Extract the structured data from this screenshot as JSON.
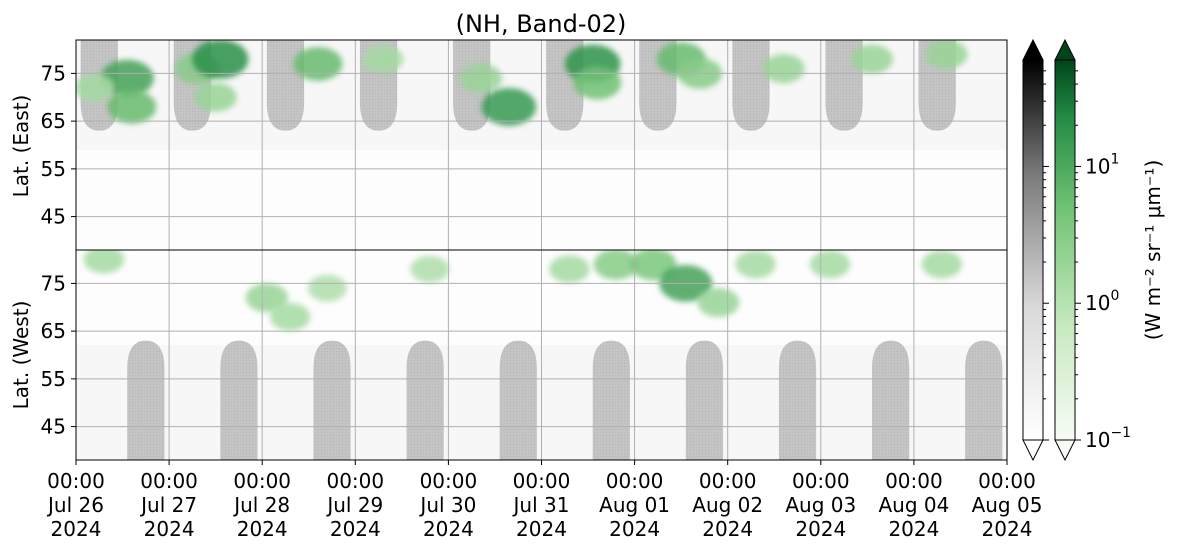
{
  "chart_data": {
    "type": "heatmap",
    "title": "(NH, Band-02)",
    "ylabel_top": "Lat. (East)",
    "ylabel_bottom": "Lat. (West)",
    "y_ticks_top": [
      "45",
      "55",
      "65",
      "75"
    ],
    "y_ticks_bottom": [
      "75",
      "65",
      "55",
      "45"
    ],
    "y_tick_values_top": [
      45,
      55,
      65,
      75
    ],
    "y_tick_values_bottom": [
      75,
      65,
      55,
      45
    ],
    "ylim_top": [
      38,
      82
    ],
    "ylim_bottom": [
      82,
      38
    ],
    "x_ticks": [
      {
        "time": "00:00",
        "date": "Jul 26",
        "year": "2024"
      },
      {
        "time": "00:00",
        "date": "Jul 27",
        "year": "2024"
      },
      {
        "time": "00:00",
        "date": "Jul 28",
        "year": "2024"
      },
      {
        "time": "00:00",
        "date": "Jul 29",
        "year": "2024"
      },
      {
        "time": "00:00",
        "date": "Jul 30",
        "year": "2024"
      },
      {
        "time": "00:00",
        "date": "Jul 31",
        "year": "2024"
      },
      {
        "time": "00:00",
        "date": "Aug 01",
        "year": "2024"
      },
      {
        "time": "00:00",
        "date": "Aug 02",
        "year": "2024"
      },
      {
        "time": "00:00",
        "date": "Aug 03",
        "year": "2024"
      },
      {
        "time": "00:00",
        "date": "Aug 04",
        "year": "2024"
      },
      {
        "time": "00:00",
        "date": "Aug 05",
        "year": "2024"
      }
    ],
    "xlim": [
      "2024-07-26 00:00",
      "2024-08-05 00:00"
    ],
    "grid": true,
    "colorbar": {
      "label": "(W m⁻² sr⁻¹ μm⁻¹)",
      "scale": "log",
      "range": [
        0.1,
        60
      ],
      "extend": "both",
      "ticks": [
        {
          "value": 0.1,
          "base": "10",
          "exp": "−1"
        },
        {
          "value": 1,
          "base": "10",
          "exp": "0"
        },
        {
          "value": 10,
          "base": "10",
          "exp": "1"
        }
      ],
      "cmaps": [
        "Greys (night-side)",
        "Greens (day-side)"
      ]
    },
    "night_regions_east": [
      {
        "center": "2024-07-26 06:00",
        "min_lat": 63
      },
      {
        "center": "2024-07-27 06:00",
        "min_lat": 63
      },
      {
        "center": "2024-07-28 06:00",
        "min_lat": 63
      },
      {
        "center": "2024-07-29 06:00",
        "min_lat": 63
      },
      {
        "center": "2024-07-30 06:00",
        "min_lat": 63
      },
      {
        "center": "2024-07-31 06:00",
        "min_lat": 63
      },
      {
        "center": "2024-08-01 06:00",
        "min_lat": 63
      },
      {
        "center": "2024-08-02 06:00",
        "min_lat": 63
      },
      {
        "center": "2024-08-03 06:00",
        "min_lat": 63
      },
      {
        "center": "2024-08-04 06:00",
        "min_lat": 63
      }
    ],
    "night_regions_west": [
      {
        "center": "2024-07-26 18:00",
        "min_lat": 63
      },
      {
        "center": "2024-07-27 18:00",
        "min_lat": 63
      },
      {
        "center": "2024-07-28 18:00",
        "min_lat": 63
      },
      {
        "center": "2024-07-29 18:00",
        "min_lat": 63
      },
      {
        "center": "2024-07-30 18:00",
        "min_lat": 63
      },
      {
        "center": "2024-07-31 18:00",
        "min_lat": 63
      },
      {
        "center": "2024-08-01 18:00",
        "min_lat": 63
      },
      {
        "center": "2024-08-02 18:00",
        "min_lat": 63
      },
      {
        "center": "2024-08-03 18:00",
        "min_lat": 63
      },
      {
        "center": "2024-08-04 18:00",
        "min_lat": 63
      }
    ],
    "emission_patches": [
      {
        "hemi": "east",
        "day": 0.55,
        "lat": 74,
        "value": 12
      },
      {
        "hemi": "east",
        "day": 0.6,
        "lat": 68,
        "value": 6
      },
      {
        "hemi": "east",
        "day": 0.2,
        "lat": 72,
        "value": 1.5
      },
      {
        "hemi": "east",
        "day": 1.3,
        "lat": 76,
        "value": 3
      },
      {
        "hemi": "east",
        "day": 1.55,
        "lat": 78,
        "value": 20
      },
      {
        "hemi": "east",
        "day": 1.5,
        "lat": 70,
        "value": 2
      },
      {
        "hemi": "east",
        "day": 2.6,
        "lat": 77,
        "value": 6
      },
      {
        "hemi": "east",
        "day": 3.3,
        "lat": 78,
        "value": 1.5
      },
      {
        "hemi": "east",
        "day": 4.35,
        "lat": 74,
        "value": 2
      },
      {
        "hemi": "east",
        "day": 4.65,
        "lat": 68,
        "value": 15
      },
      {
        "hemi": "east",
        "day": 5.55,
        "lat": 77,
        "value": 18
      },
      {
        "hemi": "east",
        "day": 5.6,
        "lat": 73,
        "value": 5
      },
      {
        "hemi": "east",
        "day": 6.5,
        "lat": 78,
        "value": 6
      },
      {
        "hemi": "east",
        "day": 6.7,
        "lat": 75,
        "value": 3
      },
      {
        "hemi": "east",
        "day": 7.6,
        "lat": 76,
        "value": 2
      },
      {
        "hemi": "east",
        "day": 8.55,
        "lat": 78,
        "value": 2
      },
      {
        "hemi": "east",
        "day": 9.35,
        "lat": 79,
        "value": 2
      },
      {
        "hemi": "west",
        "day": 0.3,
        "lat": 80,
        "value": 1.5
      },
      {
        "hemi": "west",
        "day": 2.05,
        "lat": 72,
        "value": 2
      },
      {
        "hemi": "west",
        "day": 2.3,
        "lat": 68,
        "value": 1.5
      },
      {
        "hemi": "west",
        "day": 2.7,
        "lat": 74,
        "value": 1.2
      },
      {
        "hemi": "west",
        "day": 3.8,
        "lat": 78,
        "value": 1.2
      },
      {
        "hemi": "west",
        "day": 5.3,
        "lat": 78,
        "value": 1.5
      },
      {
        "hemi": "west",
        "day": 5.8,
        "lat": 79,
        "value": 3
      },
      {
        "hemi": "west",
        "day": 6.2,
        "lat": 79,
        "value": 4
      },
      {
        "hemi": "west",
        "day": 6.55,
        "lat": 75,
        "value": 12
      },
      {
        "hemi": "west",
        "day": 6.9,
        "lat": 71,
        "value": 2
      },
      {
        "hemi": "west",
        "day": 7.3,
        "lat": 79,
        "value": 1.5
      },
      {
        "hemi": "west",
        "day": 8.1,
        "lat": 79,
        "value": 1.5
      },
      {
        "hemi": "west",
        "day": 9.3,
        "lat": 79,
        "value": 1.5
      }
    ]
  }
}
